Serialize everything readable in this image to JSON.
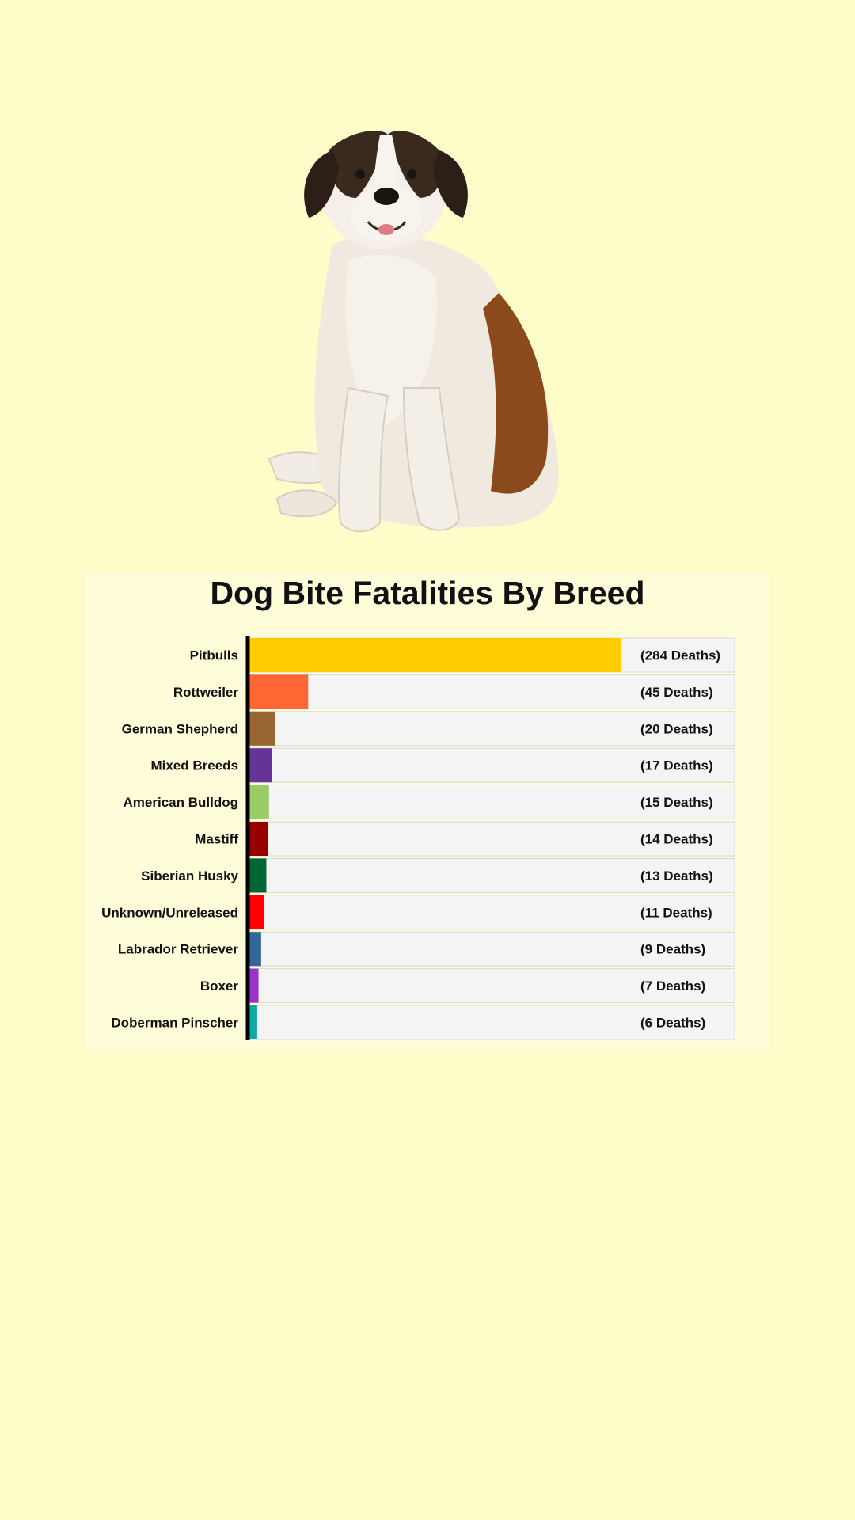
{
  "page": {
    "background": "#fefcc9"
  },
  "photo": {
    "subject": "saint-bernard-dog"
  },
  "chart_data": {
    "type": "bar",
    "orientation": "horizontal",
    "title": "Dog Bite Fatalities By Breed",
    "categories": [
      "Pitbulls",
      "Rottweiler",
      "German Shepherd",
      "Mixed Breeds",
      "American Bulldog",
      "Mastiff",
      "Siberian Husky",
      "Unknown/Unreleased",
      "Labrador Retriever",
      "Boxer",
      "Doberman Pinscher"
    ],
    "values": [
      284,
      45,
      20,
      17,
      15,
      14,
      13,
      11,
      9,
      7,
      6
    ],
    "value_labels": [
      "(284 Deaths)",
      "(45 Deaths)",
      "(20 Deaths)",
      "(17 Deaths)",
      "(15 Deaths)",
      "(14 Deaths)",
      "(13 Deaths)",
      "(11 Deaths)",
      "(9 Deaths)",
      "(7 Deaths)",
      "(6 Deaths)"
    ],
    "colors": [
      "#ffcc00",
      "#ff6633",
      "#996633",
      "#663399",
      "#99cc66",
      "#990000",
      "#006633",
      "#ff0000",
      "#336699",
      "#9933cc",
      "#11aaaa"
    ],
    "track_color": "#f4f4f4",
    "xlabel": "",
    "ylabel": "",
    "grid": false,
    "legend": "none"
  }
}
